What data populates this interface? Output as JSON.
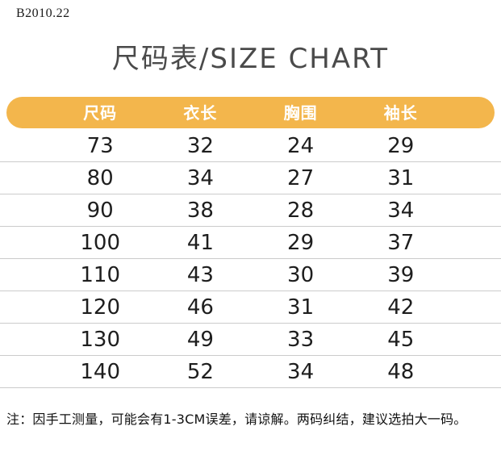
{
  "brand": "B2010.22",
  "title": "尺码表/SIZE CHART",
  "colors": {
    "accent_yellow": "#F3B64C",
    "header_text": "#FFFFFF"
  },
  "table": {
    "headers": [
      "尺码",
      "衣长",
      "胸围",
      "袖长"
    ],
    "rows": [
      [
        "73",
        "32",
        "24",
        "29"
      ],
      [
        "80",
        "34",
        "27",
        "31"
      ],
      [
        "90",
        "38",
        "28",
        "34"
      ],
      [
        "100",
        "41",
        "29",
        "37"
      ],
      [
        "110",
        "43",
        "30",
        "39"
      ],
      [
        "120",
        "46",
        "31",
        "42"
      ],
      [
        "130",
        "49",
        "33",
        "45"
      ],
      [
        "140",
        "52",
        "34",
        "48"
      ]
    ]
  },
  "note": "注：因手工测量，可能会有1-3CM误差，请谅解。两码纠结，建议选拍大一码。"
}
